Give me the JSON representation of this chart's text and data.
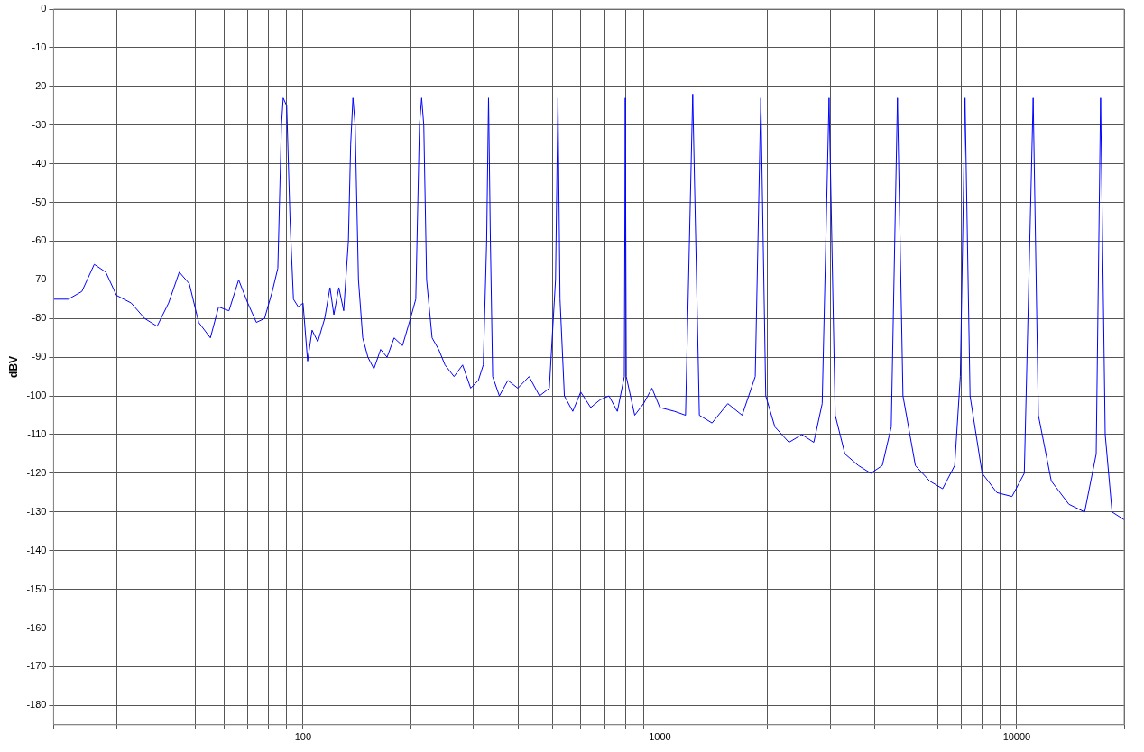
{
  "chart_data": {
    "type": "line",
    "ylabel": "dBV",
    "log": "x",
    "grid": true,
    "marker": "none",
    "line_style": "solid",
    "xlim": [
      20,
      20000
    ],
    "ylim": [
      -185,
      0
    ],
    "xticks": [
      {
        "value": 20,
        "label": null
      },
      {
        "value": 30,
        "label": null
      },
      {
        "value": 40,
        "label": null
      },
      {
        "value": 50,
        "label": null
      },
      {
        "value": 60,
        "label": null
      },
      {
        "value": 70,
        "label": null
      },
      {
        "value": 80,
        "label": null
      },
      {
        "value": 90,
        "label": null
      },
      100,
      {
        "value": 200,
        "label": null
      },
      {
        "value": 300,
        "label": null
      },
      {
        "value": 400,
        "label": null
      },
      {
        "value": 500,
        "label": null
      },
      {
        "value": 600,
        "label": null
      },
      {
        "value": 700,
        "label": null
      },
      {
        "value": 800,
        "label": null
      },
      {
        "value": 900,
        "label": null
      },
      1000,
      {
        "value": 2000,
        "label": null
      },
      {
        "value": 3000,
        "label": null
      },
      {
        "value": 4000,
        "label": null
      },
      {
        "value": 5000,
        "label": null
      },
      {
        "value": 6000,
        "label": null
      },
      {
        "value": 7000,
        "label": null
      },
      {
        "value": 8000,
        "label": null
      },
      {
        "value": 9000,
        "label": null
      },
      10000,
      {
        "value": 20000,
        "label": null
      }
    ],
    "yticks": [
      0,
      -10,
      -20,
      -30,
      -40,
      -50,
      -60,
      -70,
      -80,
      -90,
      -100,
      -110,
      -120,
      -130,
      -140,
      -150,
      -160,
      -170,
      -180
    ],
    "series": [
      {
        "color": "#0000ff",
        "x": [
          20,
          22,
          24,
          26,
          28,
          30,
          33,
          36,
          39,
          42,
          45,
          48,
          51,
          55,
          58,
          62,
          66,
          70,
          74,
          78,
          82,
          85,
          87,
          88,
          90,
          92,
          94,
          97,
          100,
          103,
          106,
          110,
          115,
          119,
          122,
          126,
          130,
          134,
          136,
          138,
          140,
          143,
          147,
          152,
          158,
          165,
          172,
          180,
          190,
          200,
          207,
          212,
          215,
          218,
          222,
          230,
          240,
          250,
          265,
          280,
          295,
          310,
          320,
          327,
          331,
          335,
          340,
          355,
          375,
          400,
          430,
          460,
          490,
          510,
          518,
          525,
          540,
          570,
          600,
          640,
          680,
          720,
          760,
          795,
          800,
          805,
          850,
          900,
          950,
          1000,
          1100,
          1180,
          1236,
          1290,
          1400,
          1550,
          1700,
          1850,
          1918,
          1980,
          2100,
          2300,
          2500,
          2700,
          2850,
          2979,
          3100,
          3300,
          3600,
          3900,
          4200,
          4450,
          4632,
          4800,
          5200,
          5700,
          6200,
          6700,
          6950,
          7164,
          7400,
          8000,
          8800,
          9700,
          10500,
          11120,
          11500,
          12500,
          14000,
          15500,
          16700,
          17180,
          17700,
          18500,
          20000
        ],
        "values": [
          -75,
          -75,
          -73,
          -66,
          -68,
          -74,
          -76,
          -80,
          -82,
          -76,
          -68,
          -71,
          -81,
          -85,
          -77,
          -78,
          -70,
          -76,
          -81,
          -80,
          -73,
          -67,
          -30,
          -23,
          -25,
          -55,
          -75,
          -77,
          -76,
          -91,
          -83,
          -86,
          -80,
          -72,
          -79,
          -72,
          -78,
          -60,
          -35,
          -23,
          -30,
          -70,
          -85,
          -90,
          -93,
          -88,
          -90,
          -85,
          -87,
          -80,
          -75,
          -30,
          -23,
          -30,
          -70,
          -85,
          -88,
          -92,
          -95,
          -92,
          -98,
          -96,
          -92,
          -60,
          -23,
          -60,
          -95,
          -100,
          -96,
          -98,
          -95,
          -100,
          -98,
          -70,
          -23,
          -75,
          -100,
          -104,
          -99,
          -103,
          -101,
          -100,
          -104,
          -95,
          -23,
          -95,
          -105,
          -102,
          -98,
          -103,
          -104,
          -105,
          -22,
          -105,
          -107,
          -102,
          -105,
          -95,
          -23,
          -100,
          -108,
          -112,
          -110,
          -112,
          -102,
          -23,
          -105,
          -115,
          -118,
          -120,
          -118,
          -108,
          -23,
          -100,
          -118,
          -122,
          -124,
          -118,
          -95,
          -23,
          -100,
          -120,
          -125,
          -126,
          -120,
          -23,
          -105,
          -122,
          -128,
          -130,
          -115,
          -23,
          -110,
          -130,
          -132
        ]
      }
    ]
  }
}
